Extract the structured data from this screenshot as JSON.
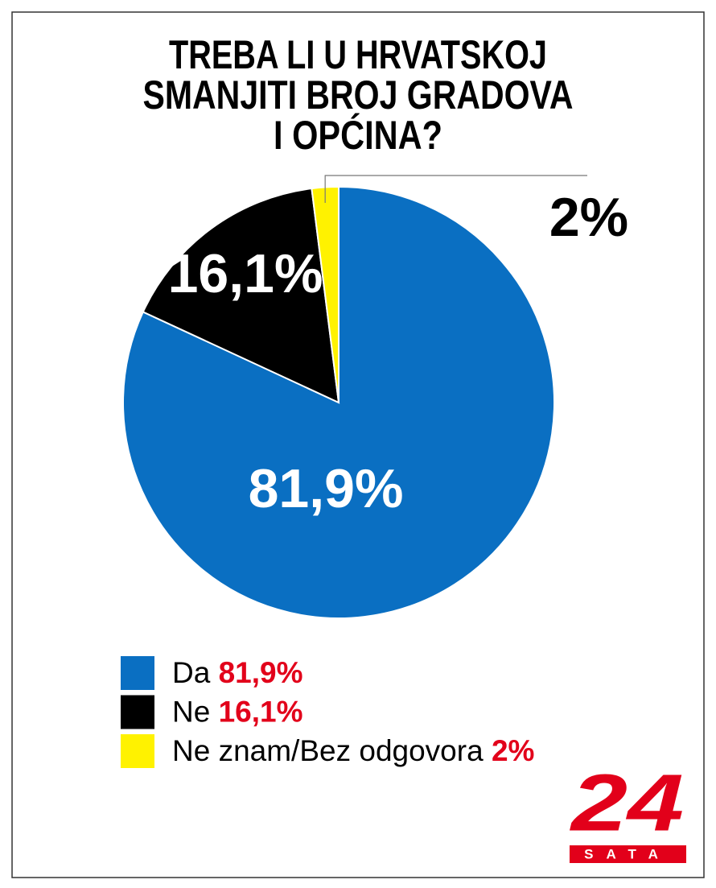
{
  "chart_data": {
    "type": "pie",
    "title": [
      "TREBA LI U HRVATSKOJ",
      "SMANJITI BROJ GRADOVA",
      "I OPĆINA?"
    ],
    "categories": [
      "Da",
      "Ne",
      "Ne znam/Bez odgovora"
    ],
    "values": [
      81.9,
      16.1,
      2
    ],
    "value_labels": [
      "81,9%",
      "16,1%",
      "2%"
    ],
    "colors": [
      "#0a6fc2",
      "#000000",
      "#fff200"
    ],
    "legend": true
  },
  "logo": {
    "number": "24",
    "text": "SATA"
  }
}
